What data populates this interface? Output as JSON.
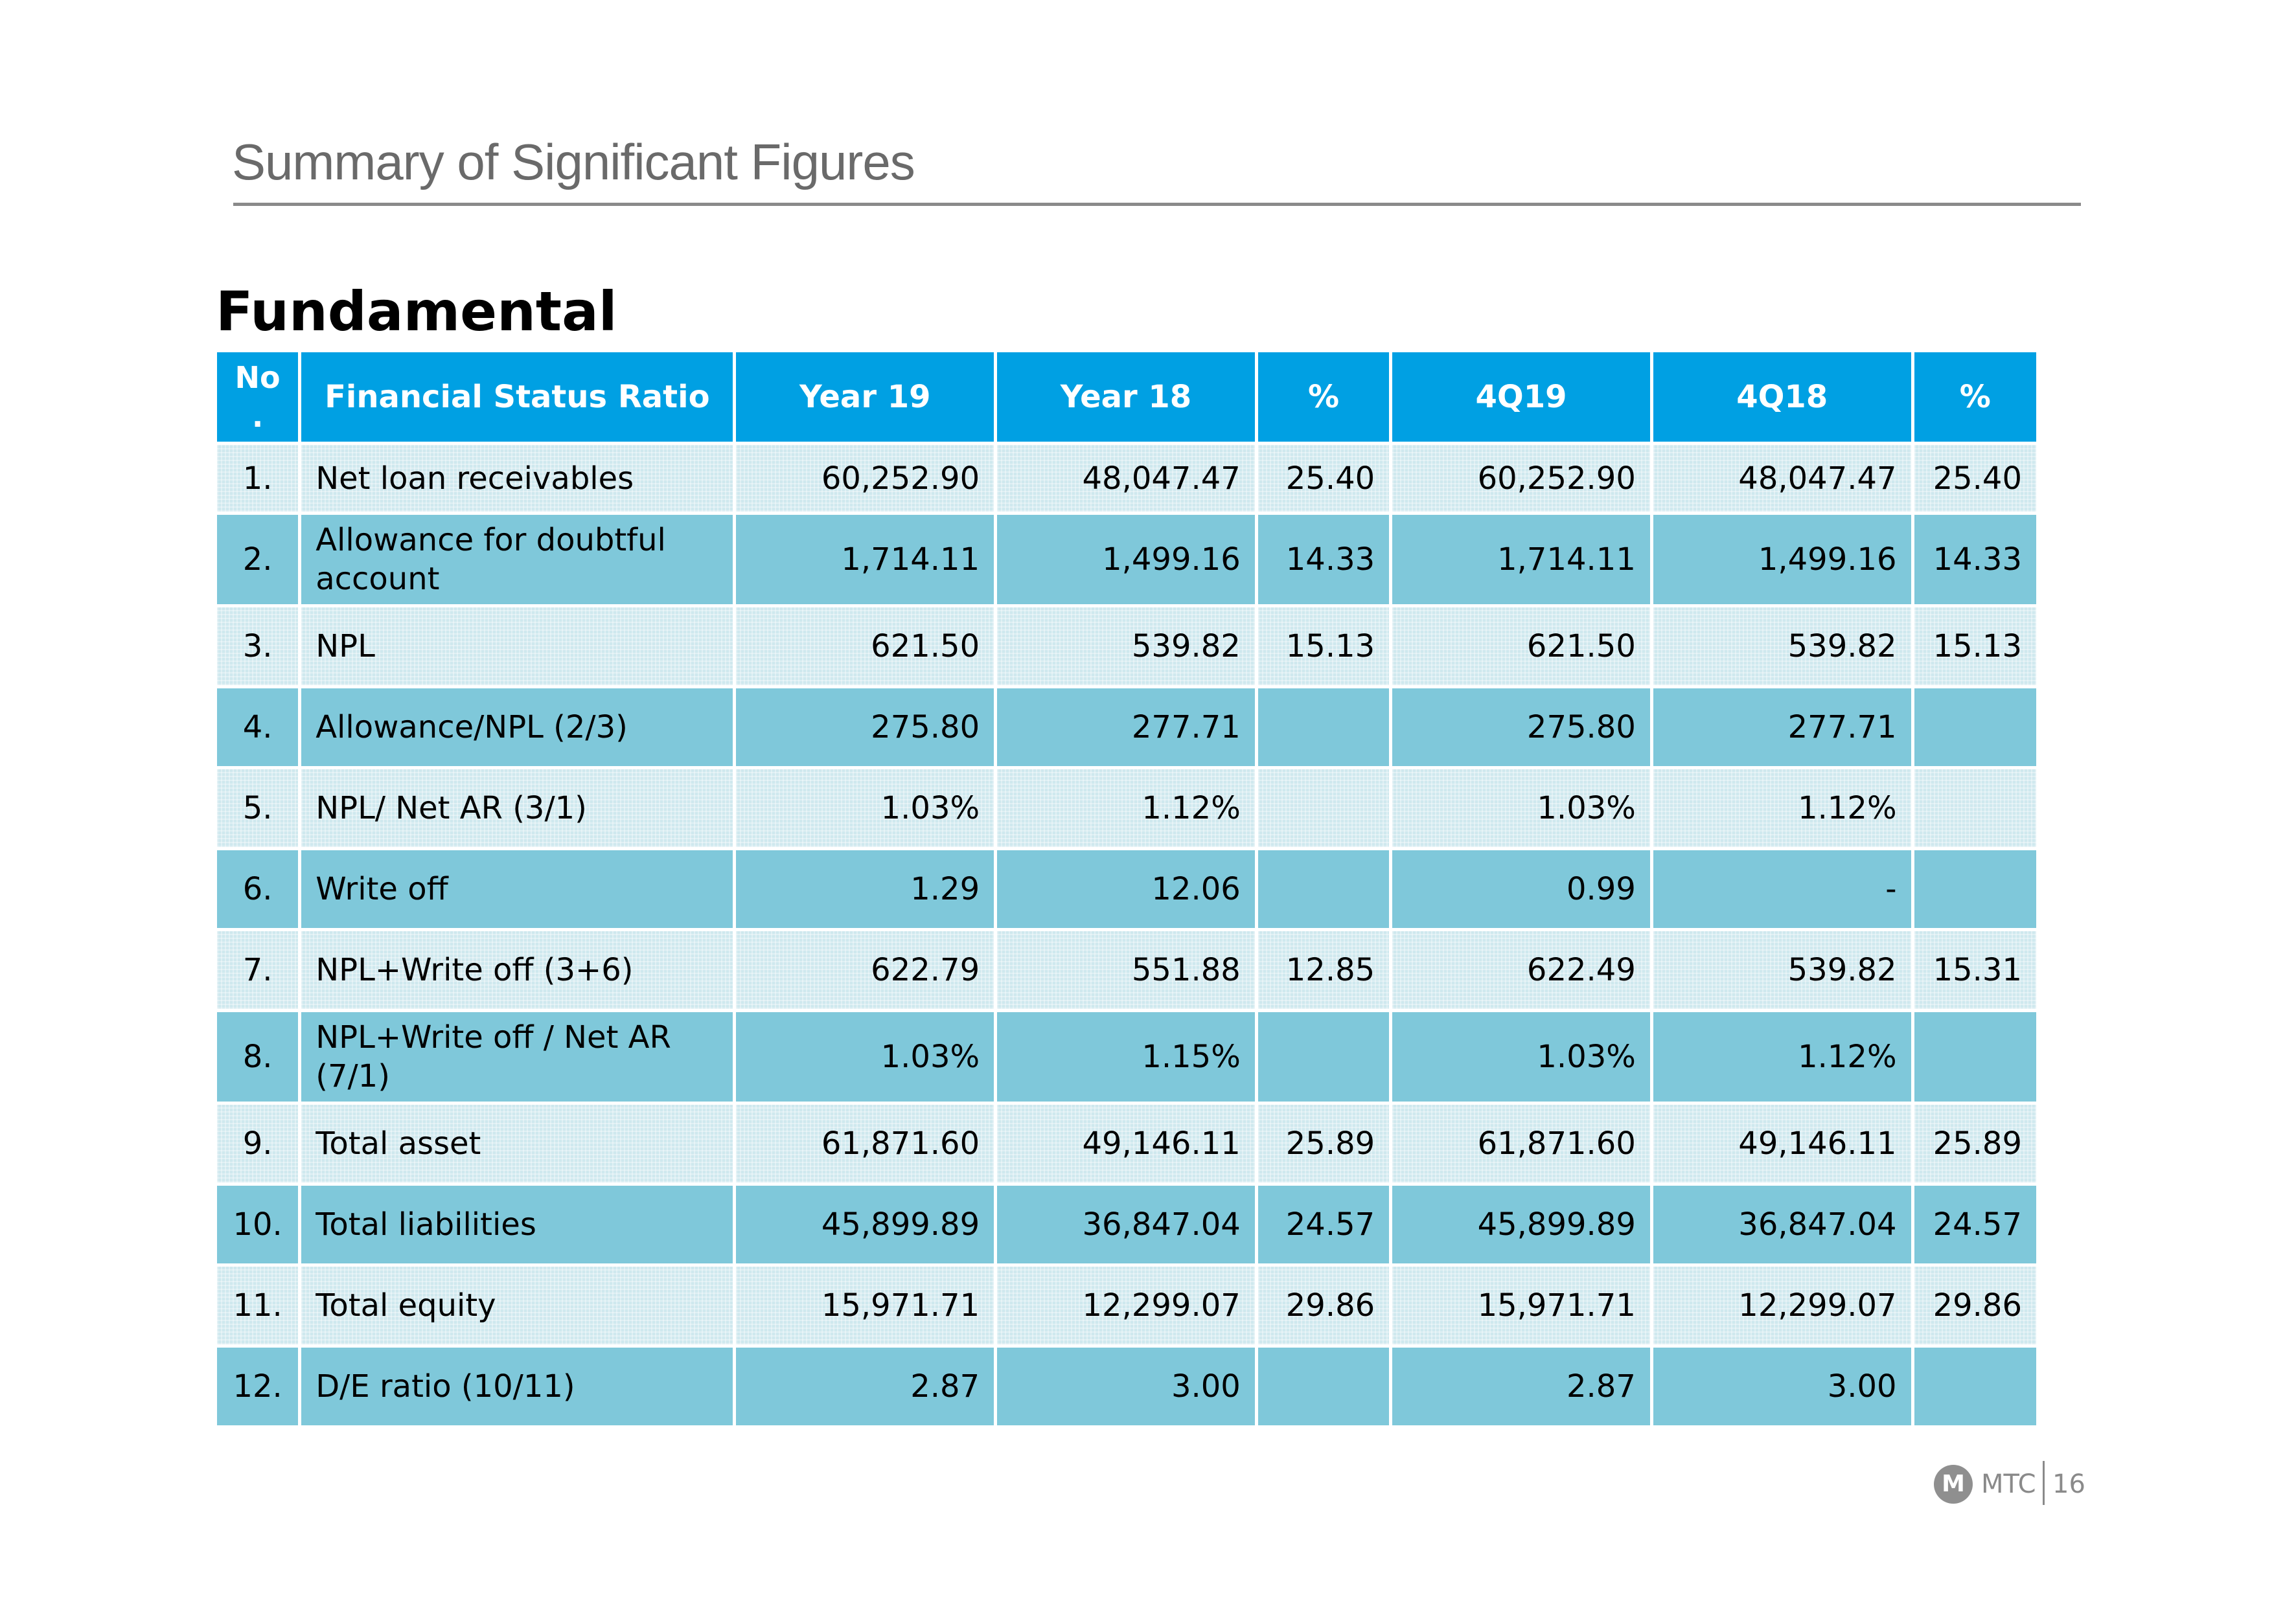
{
  "slide_title": "Summary of Significant Figures",
  "section_heading": "Fundamental",
  "table": {
    "headers": [
      "No\n.",
      "Financial Status Ratio",
      "Year 19",
      "Year 18",
      "%",
      "4Q19",
      "4Q18",
      "%"
    ],
    "rows": [
      [
        "1.",
        "Net loan receivables",
        "60,252.90",
        "48,047.47",
        "25.40",
        "60,252.90",
        "48,047.47",
        "25.40"
      ],
      [
        "2.",
        "Allowance for doubtful account",
        "1,714.11",
        "1,499.16",
        "14.33",
        "1,714.11",
        "1,499.16",
        "14.33"
      ],
      [
        "3.",
        "NPL",
        "621.50",
        "539.82",
        "15.13",
        "621.50",
        "539.82",
        "15.13"
      ],
      [
        "4.",
        "Allowance/NPL (2/3)",
        "275.80",
        "277.71",
        "",
        "275.80",
        "277.71",
        ""
      ],
      [
        "5.",
        "NPL/ Net AR (3/1)",
        "1.03%",
        "1.12%",
        "",
        "1.03%",
        "1.12%",
        ""
      ],
      [
        "6.",
        "Write off",
        "1.29",
        "12.06",
        "",
        "0.99",
        "-",
        ""
      ],
      [
        "7.",
        "NPL+Write off (3+6)",
        "622.79",
        "551.88",
        "12.85",
        "622.49",
        "539.82",
        "15.31"
      ],
      [
        "8.",
        "NPL+Write off / Net AR (7/1)",
        "1.03%",
        "1.15%",
        "",
        "1.03%",
        "1.12%",
        ""
      ],
      [
        "9.",
        "Total asset",
        "61,871.60",
        "49,146.11",
        "25.89",
        "61,871.60",
        "49,146.11",
        "25.89"
      ],
      [
        "10.",
        "Total liabilities",
        "45,899.89",
        "36,847.04",
        "24.57",
        "45,899.89",
        "36,847.04",
        "24.57"
      ],
      [
        "11.",
        "Total equity",
        "15,971.71",
        "12,299.07",
        "29.86",
        "15,971.71",
        "12,299.07",
        "29.86"
      ],
      [
        "12.",
        "D/E ratio (10/11)",
        "2.87",
        "3.00",
        "",
        "2.87",
        "3.00",
        ""
      ]
    ]
  },
  "footer": {
    "logo_icon": "mtc-logo-icon",
    "brand": "MTC",
    "page_number": "16"
  },
  "colors": {
    "header_bg": "#00a0e3",
    "row_light": "#cfe8ee",
    "row_dark": "#7fc8da",
    "title_gray": "#6a6a6a"
  }
}
